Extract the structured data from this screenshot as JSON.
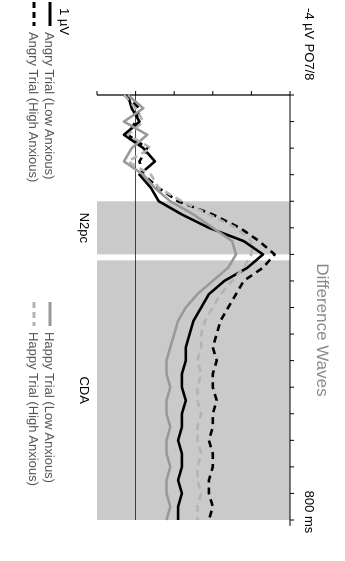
{
  "chart_data": {
    "type": "line",
    "title": "Difference Waves",
    "channel": "PO7/8",
    "x_unit": "ms",
    "x_range": [
      0,
      800
    ],
    "x_end_label": "800 ms",
    "y_top_label": "-4 µV",
    "y_bottom_label": "1 µV",
    "y_range_uV": [
      1,
      -4
    ],
    "windows": [
      {
        "label": "N2pc",
        "start": 200,
        "end": 300
      },
      {
        "label": "CDA",
        "start": 300,
        "end": 800
      }
    ],
    "series": [
      {
        "name": "Angry Trial (Low Anxious)",
        "color": "#000000",
        "dash": "solid",
        "x": [
          0,
          25,
          50,
          75,
          100,
          125,
          150,
          175,
          200,
          225,
          250,
          275,
          300,
          325,
          350,
          375,
          400,
          425,
          450,
          475,
          500,
          525,
          550,
          575,
          600,
          625,
          650,
          675,
          700,
          725,
          750,
          775,
          800
        ],
        "y": [
          0.2,
          0.1,
          -0.1,
          0.3,
          -0.2,
          -0.5,
          -0.1,
          -0.4,
          -0.6,
          -1.2,
          -1.9,
          -2.8,
          -3.3,
          -2.9,
          -2.3,
          -1.9,
          -1.7,
          -1.5,
          -1.4,
          -1.3,
          -1.3,
          -1.2,
          -1.2,
          -1.3,
          -1.2,
          -1.2,
          -1.1,
          -1.2,
          -1.2,
          -1.1,
          -1.2,
          -1.1,
          -1.1
        ]
      },
      {
        "name": "Angry Trial (High Anxious)",
        "color": "#000000",
        "dash": "dashed",
        "x": [
          0,
          25,
          50,
          75,
          100,
          125,
          150,
          175,
          200,
          225,
          250,
          275,
          300,
          325,
          350,
          375,
          400,
          425,
          450,
          475,
          500,
          525,
          550,
          575,
          600,
          625,
          650,
          675,
          700,
          725,
          750,
          775,
          800
        ],
        "y": [
          0.3,
          -0.1,
          0.0,
          0.2,
          -0.3,
          -0.1,
          -0.2,
          -0.6,
          -1.1,
          -2.0,
          -2.7,
          -3.2,
          -3.6,
          -3.3,
          -2.8,
          -2.6,
          -2.4,
          -2.2,
          -2.1,
          -2.0,
          -2.1,
          -2.0,
          -2.0,
          -2.1,
          -2.0,
          -2.0,
          -1.9,
          -2.0,
          -2.0,
          -1.9,
          -1.9,
          -2.0,
          -1.9
        ]
      },
      {
        "name": "Happy Trial (Low Anxious)",
        "color": "#999999",
        "dash": "solid",
        "x": [
          0,
          25,
          50,
          75,
          100,
          125,
          150,
          175,
          200,
          225,
          250,
          275,
          300,
          325,
          350,
          375,
          400,
          425,
          450,
          475,
          500,
          525,
          550,
          575,
          600,
          625,
          650,
          675,
          700,
          725,
          750,
          775,
          800
        ],
        "y": [
          0.2,
          -0.2,
          0.3,
          -0.3,
          0.1,
          0.3,
          -0.2,
          -0.5,
          -0.9,
          -1.5,
          -2.0,
          -2.5,
          -2.6,
          -2.4,
          -2.0,
          -1.6,
          -1.3,
          -1.1,
          -1.0,
          -0.9,
          -0.8,
          -0.8,
          -0.9,
          -0.8,
          -0.8,
          -0.9,
          -0.8,
          -0.8,
          -0.9,
          -0.8,
          -0.8,
          -0.9,
          -0.8
        ]
      },
      {
        "name": "Happy Trial (High Anxious)",
        "color": "#b3b3b3",
        "dash": "dashed",
        "x": [
          0,
          25,
          50,
          75,
          100,
          125,
          150,
          175,
          200,
          225,
          250,
          275,
          300,
          325,
          350,
          375,
          400,
          425,
          450,
          475,
          500,
          525,
          550,
          575,
          600,
          625,
          650,
          675,
          700,
          725,
          750,
          775,
          800
        ],
        "y": [
          0.3,
          0.0,
          -0.2,
          0.2,
          -0.4,
          0.2,
          -0.4,
          -0.6,
          -1.2,
          -1.9,
          -2.6,
          -3.0,
          -3.0,
          -2.8,
          -2.5,
          -2.2,
          -2.0,
          -1.8,
          -1.7,
          -1.7,
          -1.6,
          -1.7,
          -1.6,
          -1.6,
          -1.7,
          -1.6,
          -1.6,
          -1.7,
          -1.6,
          -1.6,
          -1.7,
          -1.6,
          -1.6
        ]
      }
    ]
  }
}
